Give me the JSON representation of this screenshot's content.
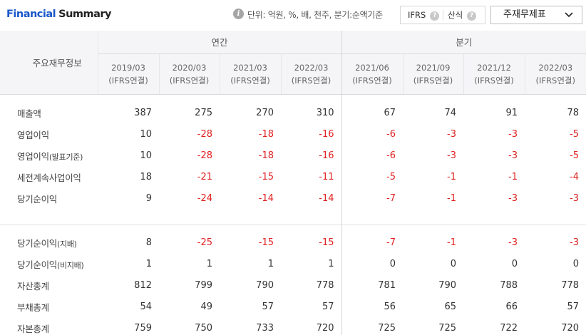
{
  "header": {
    "title_part1": "Financial",
    "title_part2": "Summary",
    "unit_text": "단위: 억원, %, 배, 천주, 분기:순액기준",
    "option_ifrs": "IFRS",
    "option_sansik": "산식",
    "help_glyph": "?",
    "info_glyph": "i",
    "select_value": "주재무제표"
  },
  "table": {
    "row_header": "주요재무정보",
    "group_annual": "연간",
    "group_quarter": "분기",
    "periods": [
      {
        "date": "2019/03",
        "basis": "(IFRS연결)"
      },
      {
        "date": "2020/03",
        "basis": "(IFRS연결)"
      },
      {
        "date": "2021/03",
        "basis": "(IFRS연결)"
      },
      {
        "date": "2022/03",
        "basis": "(IFRS연결)"
      },
      {
        "date": "2021/06",
        "basis": "(IFRS연결)"
      },
      {
        "date": "2021/09",
        "basis": "(IFRS연결)"
      },
      {
        "date": "2021/12",
        "basis": "(IFRS연결)"
      },
      {
        "date": "2022/03",
        "basis": "(IFRS연결)"
      }
    ],
    "rows_top": [
      {
        "label": "매출액",
        "suffix": "",
        "values": [
          "387",
          "275",
          "270",
          "310",
          "67",
          "74",
          "91",
          "78"
        ]
      },
      {
        "label": "영업이익",
        "suffix": "",
        "values": [
          "10",
          "-28",
          "-18",
          "-16",
          "-6",
          "-3",
          "-3",
          "-5"
        ]
      },
      {
        "label": "영업이익",
        "suffix": "(발표기준)",
        "values": [
          "10",
          "-28",
          "-18",
          "-16",
          "-6",
          "-3",
          "-3",
          "-5"
        ]
      },
      {
        "label": "세전계속사업이익",
        "suffix": "",
        "values": [
          "18",
          "-21",
          "-15",
          "-11",
          "-5",
          "-1",
          "-1",
          "-4"
        ]
      },
      {
        "label": "당기순이익",
        "suffix": "",
        "values": [
          "9",
          "-24",
          "-14",
          "-14",
          "-7",
          "-1",
          "-3",
          "-3"
        ]
      }
    ],
    "rows_bottom": [
      {
        "label": "당기순이익",
        "suffix": "(지배)",
        "values": [
          "8",
          "-25",
          "-15",
          "-15",
          "-7",
          "-1",
          "-3",
          "-3"
        ]
      },
      {
        "label": "당기순이익",
        "suffix": "(비지배)",
        "values": [
          "1",
          "1",
          "1",
          "1",
          "0",
          "0",
          "0",
          "0"
        ]
      },
      {
        "label": "자산총계",
        "suffix": "",
        "values": [
          "812",
          "799",
          "790",
          "778",
          "781",
          "790",
          "788",
          "778"
        ]
      },
      {
        "label": "부채총계",
        "suffix": "",
        "values": [
          "54",
          "49",
          "57",
          "57",
          "56",
          "65",
          "66",
          "57"
        ]
      },
      {
        "label": "자본총계",
        "suffix": "",
        "values": [
          "759",
          "750",
          "733",
          "720",
          "725",
          "725",
          "722",
          "720"
        ]
      }
    ],
    "negative_color": "#e02020"
  }
}
